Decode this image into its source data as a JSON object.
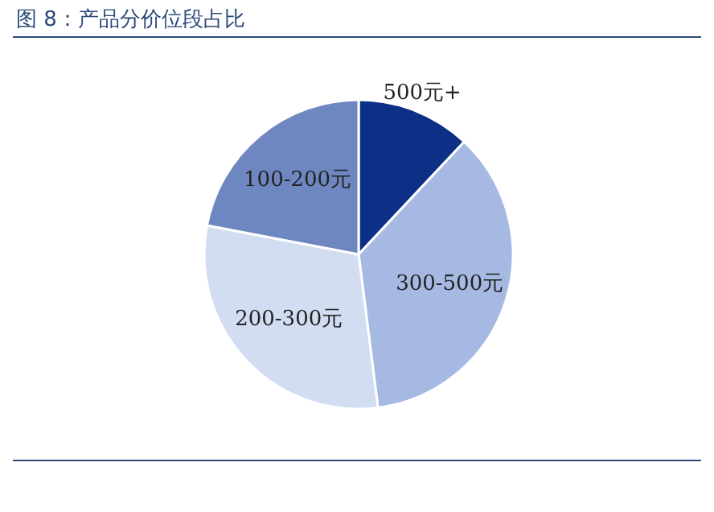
{
  "chart_data": {
    "type": "pie",
    "title": "图 8：产品分价位段占比",
    "categories": [
      "500元+",
      "300-500元",
      "200-300元",
      "100-200元"
    ],
    "values": [
      12,
      36,
      30,
      22
    ],
    "colors": [
      "#0d2f86",
      "#a6b9e3",
      "#d2ddf2",
      "#6e87c0"
    ]
  }
}
